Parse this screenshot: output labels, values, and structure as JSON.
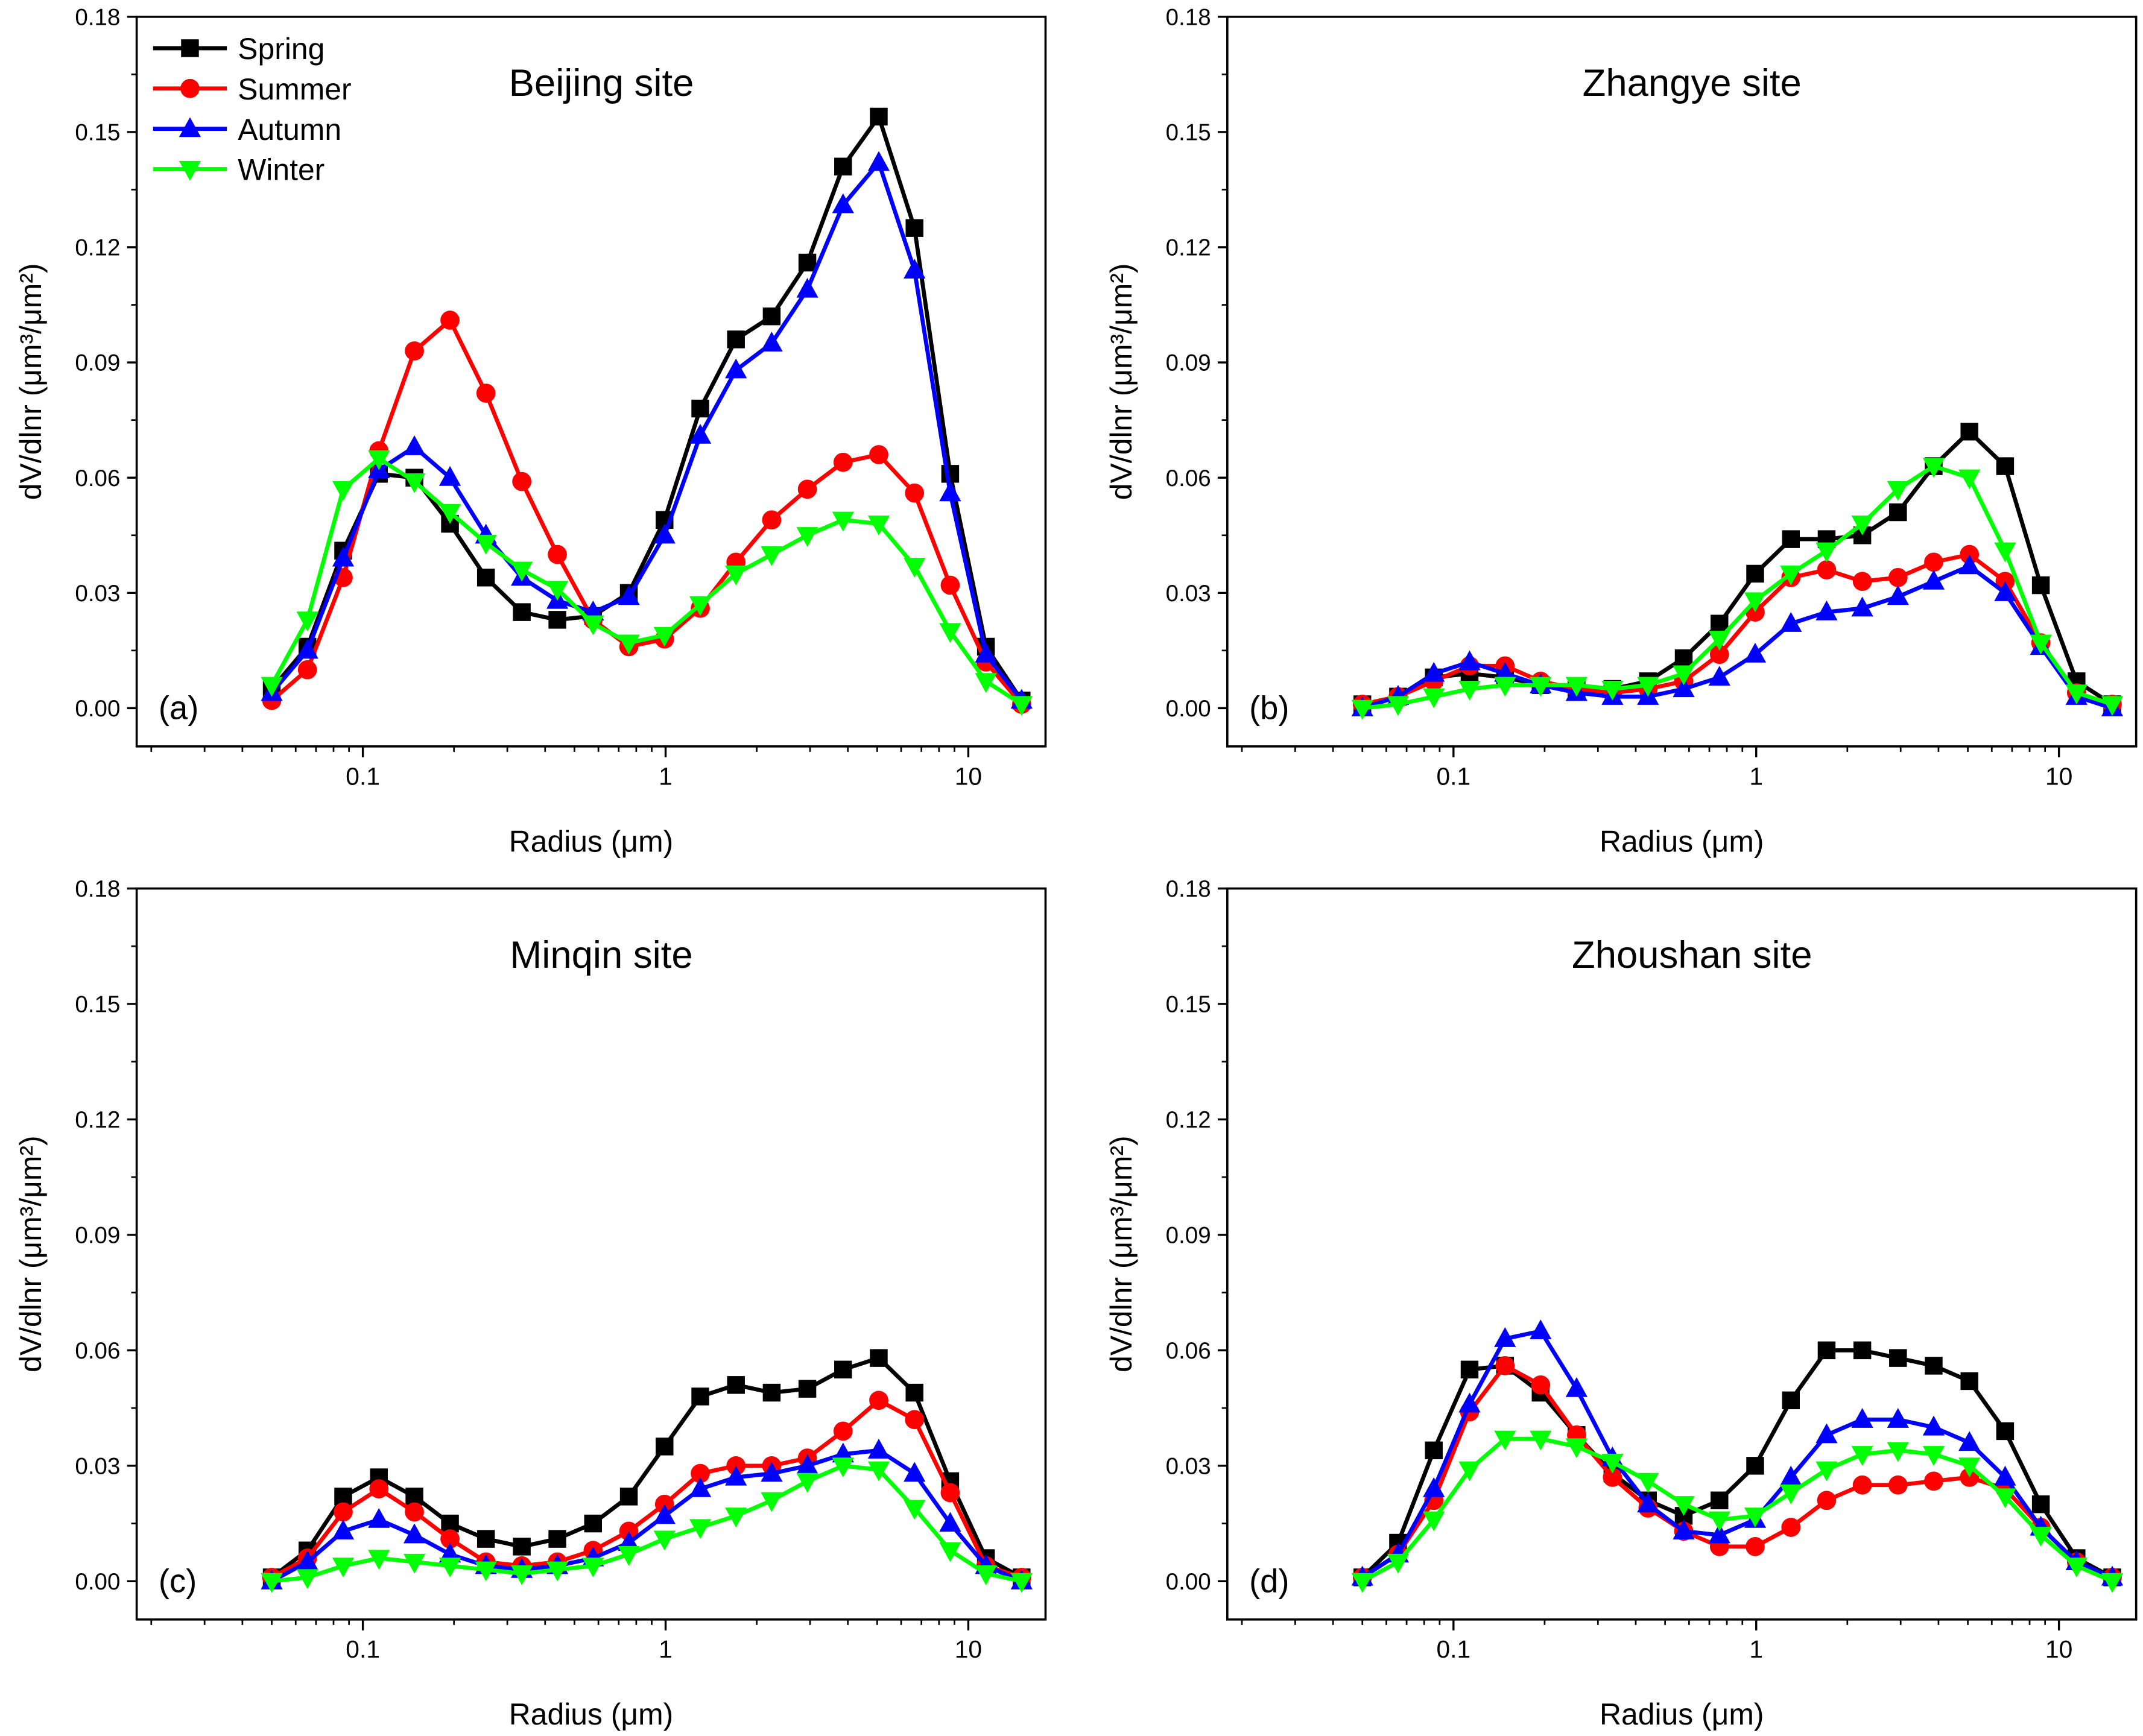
{
  "chart_data": [
    {
      "type": "line",
      "panel_label": "(a)",
      "title": "Beijing site",
      "xlabel": "Radius (μm)",
      "ylabel": "dV/dlnr (μm³/μm²)",
      "xscale": "log",
      "xlim": [
        0.018,
        18
      ],
      "ylim": [
        0,
        0.18
      ],
      "yticks": [
        "0.00",
        "0.03",
        "0.06",
        "0.09",
        "0.12",
        "0.15",
        "0.18"
      ],
      "xticks": [
        "0.1",
        "1",
        "10"
      ],
      "legend": {
        "placement": "top-left",
        "entries": [
          "Spring",
          "Summer",
          "Autumn",
          "Winter"
        ]
      },
      "x": [
        0.05,
        0.0656,
        0.0861,
        0.113,
        0.148,
        0.194,
        0.255,
        0.335,
        0.439,
        0.576,
        0.756,
        0.992,
        1.302,
        1.708,
        2.241,
        2.94,
        3.857,
        5.061,
        6.641,
        8.713,
        11.432,
        15.0
      ],
      "series": [
        {
          "name": "Spring",
          "values": [
            0.005,
            0.016,
            0.041,
            0.061,
            0.06,
            0.048,
            0.034,
            0.025,
            0.023,
            0.024,
            0.03,
            0.049,
            0.078,
            0.096,
            0.102,
            0.116,
            0.141,
            0.154,
            0.125,
            0.061,
            0.016,
            0.002
          ]
        },
        {
          "name": "Summer",
          "values": [
            0.002,
            0.01,
            0.034,
            0.067,
            0.093,
            0.101,
            0.082,
            0.059,
            0.04,
            0.023,
            0.016,
            0.018,
            0.026,
            0.038,
            0.049,
            0.057,
            0.064,
            0.066,
            0.056,
            0.032,
            0.012,
            0.001
          ]
        },
        {
          "name": "Autumn",
          "values": [
            0.004,
            0.015,
            0.039,
            0.062,
            0.068,
            0.06,
            0.045,
            0.034,
            0.028,
            0.025,
            0.029,
            0.045,
            0.071,
            0.088,
            0.095,
            0.109,
            0.131,
            0.142,
            0.114,
            0.056,
            0.014,
            0.002
          ]
        },
        {
          "name": "Winter",
          "values": [
            0.006,
            0.023,
            0.057,
            0.065,
            0.059,
            0.051,
            0.043,
            0.036,
            0.031,
            0.022,
            0.017,
            0.019,
            0.027,
            0.035,
            0.04,
            0.045,
            0.049,
            0.048,
            0.037,
            0.02,
            0.007,
            0.001
          ]
        }
      ]
    },
    {
      "type": "line",
      "panel_label": "(b)",
      "title": "Zhangye site",
      "xlabel": "Radius (μm)",
      "ylabel": "dV/dlnr (μm³/μm²)",
      "xscale": "log",
      "xlim": [
        0.018,
        18
      ],
      "ylim": [
        0,
        0.18
      ],
      "yticks": [
        "0.00",
        "0.03",
        "0.06",
        "0.09",
        "0.12",
        "0.15",
        "0.18"
      ],
      "xticks": [
        "0.1",
        "1",
        "10"
      ],
      "x": [
        0.05,
        0.0656,
        0.0861,
        0.113,
        0.148,
        0.194,
        0.255,
        0.335,
        0.439,
        0.576,
        0.756,
        0.992,
        1.302,
        1.708,
        2.241,
        2.94,
        3.857,
        5.061,
        6.641,
        8.713,
        11.432,
        15.0
      ],
      "series": [
        {
          "name": "Spring",
          "values": [
            0.001,
            0.003,
            0.008,
            0.009,
            0.008,
            0.006,
            0.005,
            0.005,
            0.007,
            0.013,
            0.022,
            0.035,
            0.044,
            0.044,
            0.045,
            0.051,
            0.063,
            0.072,
            0.063,
            0.032,
            0.007,
            0.001
          ]
        },
        {
          "name": "Summer",
          "values": [
            0.001,
            0.003,
            0.007,
            0.011,
            0.011,
            0.007,
            0.005,
            0.004,
            0.005,
            0.007,
            0.014,
            0.025,
            0.034,
            0.036,
            0.033,
            0.034,
            0.038,
            0.04,
            0.033,
            0.017,
            0.004,
            0.001
          ]
        },
        {
          "name": "Autumn",
          "values": [
            0.0,
            0.003,
            0.009,
            0.012,
            0.009,
            0.006,
            0.004,
            0.003,
            0.003,
            0.005,
            0.008,
            0.014,
            0.022,
            0.025,
            0.026,
            0.029,
            0.033,
            0.037,
            0.03,
            0.016,
            0.003,
            0.0
          ]
        },
        {
          "name": "Winter",
          "values": [
            0.0,
            0.001,
            0.003,
            0.005,
            0.006,
            0.006,
            0.006,
            0.005,
            0.006,
            0.009,
            0.018,
            0.028,
            0.035,
            0.041,
            0.048,
            0.057,
            0.063,
            0.06,
            0.041,
            0.017,
            0.004,
            0.001
          ]
        }
      ]
    },
    {
      "type": "line",
      "panel_label": "(c)",
      "title": "Minqin site",
      "xlabel": "Radius (μm)",
      "ylabel": "dV/dlnr (μm³/μm²)",
      "xscale": "log",
      "xlim": [
        0.018,
        18
      ],
      "ylim": [
        0,
        0.18
      ],
      "yticks": [
        "0.00",
        "0.03",
        "0.06",
        "0.09",
        "0.12",
        "0.15",
        "0.18"
      ],
      "xticks": [
        "0.1",
        "1",
        "10"
      ],
      "x": [
        0.05,
        0.0656,
        0.0861,
        0.113,
        0.148,
        0.194,
        0.255,
        0.335,
        0.439,
        0.576,
        0.756,
        0.992,
        1.302,
        1.708,
        2.241,
        2.94,
        3.857,
        5.061,
        6.641,
        8.713,
        11.432,
        15.0
      ],
      "series": [
        {
          "name": "Spring",
          "values": [
            0.001,
            0.008,
            0.022,
            0.027,
            0.022,
            0.015,
            0.011,
            0.009,
            0.011,
            0.015,
            0.022,
            0.035,
            0.048,
            0.051,
            0.049,
            0.05,
            0.055,
            0.058,
            0.049,
            0.026,
            0.006,
            0.001
          ]
        },
        {
          "name": "Summer",
          "values": [
            0.001,
            0.006,
            0.018,
            0.024,
            0.018,
            0.011,
            0.005,
            0.004,
            0.005,
            0.008,
            0.013,
            0.02,
            0.028,
            0.03,
            0.03,
            0.032,
            0.039,
            0.047,
            0.042,
            0.023,
            0.004,
            0.001
          ]
        },
        {
          "name": "Autumn",
          "values": [
            0.0,
            0.005,
            0.013,
            0.016,
            0.012,
            0.007,
            0.004,
            0.003,
            0.004,
            0.006,
            0.01,
            0.017,
            0.024,
            0.027,
            0.028,
            0.03,
            0.033,
            0.034,
            0.028,
            0.015,
            0.004,
            0.0
          ]
        },
        {
          "name": "Winter",
          "values": [
            0.0,
            0.001,
            0.004,
            0.006,
            0.005,
            0.004,
            0.003,
            0.002,
            0.003,
            0.004,
            0.007,
            0.011,
            0.014,
            0.017,
            0.021,
            0.026,
            0.03,
            0.029,
            0.019,
            0.008,
            0.002,
            0.0
          ]
        }
      ]
    },
    {
      "type": "line",
      "panel_label": "(d)",
      "title": "Zhoushan site",
      "xlabel": "Radius (μm)",
      "ylabel": "dV/dlnr (μm³/μm²)",
      "xscale": "log",
      "xlim": [
        0.018,
        18
      ],
      "ylim": [
        0,
        0.18
      ],
      "yticks": [
        "0.00",
        "0.03",
        "0.06",
        "0.09",
        "0.12",
        "0.15",
        "0.18"
      ],
      "xticks": [
        "0.1",
        "1",
        "10"
      ],
      "x": [
        0.05,
        0.0656,
        0.0861,
        0.113,
        0.148,
        0.194,
        0.255,
        0.335,
        0.439,
        0.576,
        0.756,
        0.992,
        1.302,
        1.708,
        2.241,
        2.94,
        3.857,
        5.061,
        6.641,
        8.713,
        11.432,
        15.0
      ],
      "series": [
        {
          "name": "Spring",
          "values": [
            0.001,
            0.01,
            0.034,
            0.055,
            0.056,
            0.049,
            0.038,
            0.028,
            0.021,
            0.017,
            0.021,
            0.03,
            0.047,
            0.06,
            0.06,
            0.058,
            0.056,
            0.052,
            0.039,
            0.02,
            0.006,
            0.001
          ]
        },
        {
          "name": "Summer",
          "values": [
            0.001,
            0.007,
            0.021,
            0.044,
            0.056,
            0.051,
            0.038,
            0.027,
            0.019,
            0.013,
            0.009,
            0.009,
            0.014,
            0.021,
            0.025,
            0.025,
            0.026,
            0.027,
            0.024,
            0.014,
            0.005,
            0.001
          ]
        },
        {
          "name": "Autumn",
          "values": [
            0.001,
            0.007,
            0.024,
            0.046,
            0.063,
            0.065,
            0.05,
            0.032,
            0.02,
            0.013,
            0.012,
            0.016,
            0.027,
            0.038,
            0.042,
            0.042,
            0.04,
            0.036,
            0.027,
            0.014,
            0.005,
            0.001
          ]
        },
        {
          "name": "Winter",
          "values": [
            0.0,
            0.005,
            0.016,
            0.029,
            0.037,
            0.037,
            0.035,
            0.031,
            0.026,
            0.02,
            0.016,
            0.017,
            0.023,
            0.029,
            0.033,
            0.034,
            0.033,
            0.03,
            0.022,
            0.012,
            0.004,
            0.0
          ]
        }
      ]
    }
  ],
  "colors": {
    "Spring": "#000000",
    "Summer": "#ff0000",
    "Autumn": "#0000ff",
    "Winter": "#00ff00"
  },
  "markers": {
    "Spring": "square",
    "Summer": "circle",
    "Autumn": "triangle-up",
    "Winter": "triangle-down"
  }
}
